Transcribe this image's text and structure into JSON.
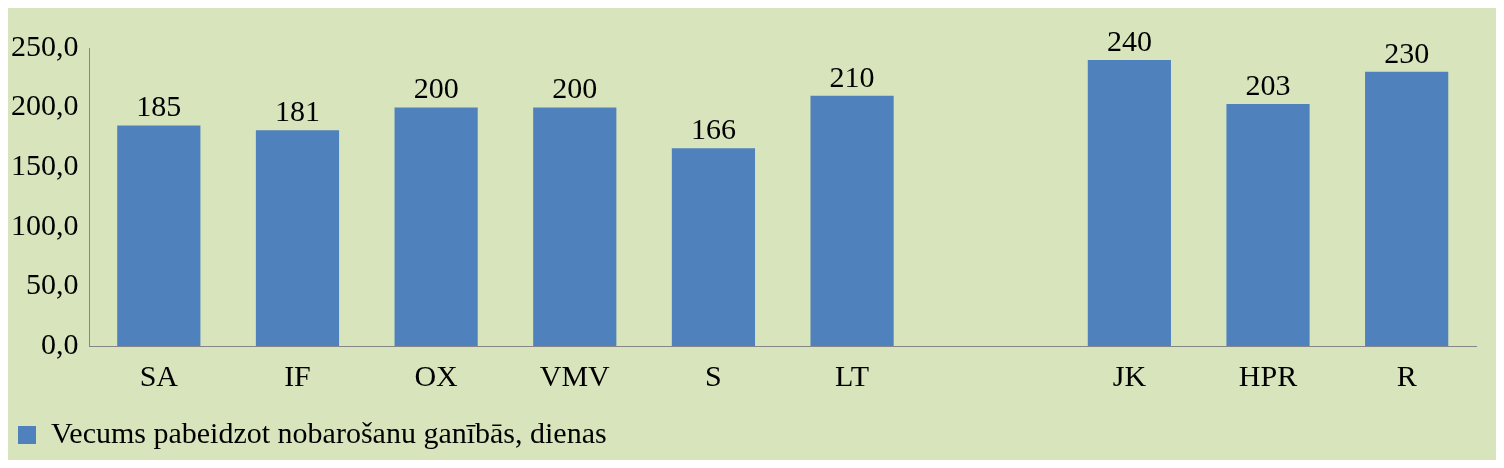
{
  "chart_data": {
    "type": "bar",
    "categories": [
      "SA",
      "IF",
      "OX",
      "VMV",
      "S",
      "LT",
      null,
      "JK",
      "HPR",
      "R"
    ],
    "series": [
      {
        "name": "Vecums pabeidzot nobarošanu ganībās, dienas",
        "color": "#4f81bd",
        "values": [
          185,
          181,
          200,
          200,
          166,
          210,
          null,
          240,
          203,
          230
        ]
      }
    ],
    "ylim": [
      0,
      250
    ],
    "yticks": [
      {
        "value": 0,
        "label": "0,0"
      },
      {
        "value": 50,
        "label": "50,0"
      },
      {
        "value": 100,
        "label": "100,0"
      },
      {
        "value": 150,
        "label": "150,0"
      },
      {
        "value": 200,
        "label": "200,0"
      },
      {
        "value": 250,
        "label": "250,0"
      }
    ],
    "grid": false,
    "legend": "bottom left",
    "data_labels": true
  }
}
